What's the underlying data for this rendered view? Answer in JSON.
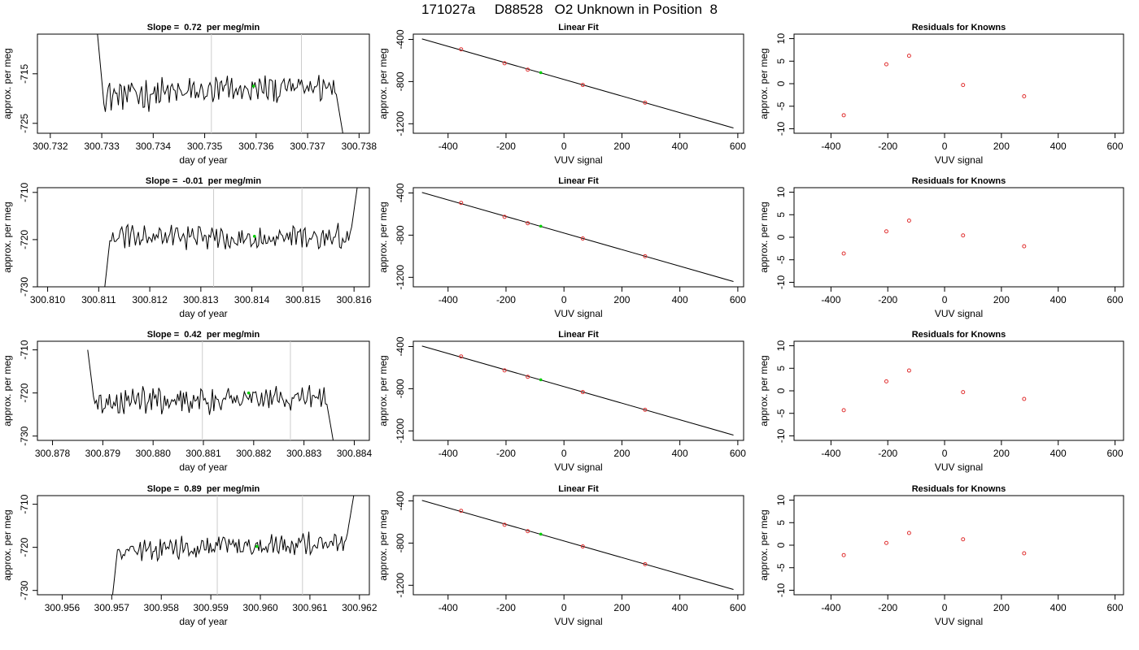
{
  "header": {
    "run_id": "171027a",
    "tank_id": "D88528",
    "description": "O2 Unknown in Position  8"
  },
  "colors": {
    "trace": "#000000",
    "known_points": "#e03030",
    "unknown_point": "#00cc00",
    "marker_lines": "#cccccc"
  },
  "chart_data": [
    {
      "type": "line",
      "row": 0,
      "panel": "timeseries",
      "title_prefix": "Slope = ",
      "title_value": "0.72",
      "title_suffix": " per meg/min",
      "xlabel": "day of year",
      "ylabel": "approx. per meg",
      "xlim": [
        300.73175,
        300.7382
      ],
      "ylim": [
        -727,
        -707
      ],
      "xticks": [
        "300.732",
        "300.733",
        "300.734",
        "300.735",
        "300.736",
        "300.737",
        "300.738"
      ],
      "yticks": [
        "-715",
        "-725"
      ],
      "x_start": 300.7329,
      "x_end": 300.7377,
      "y_start": -705,
      "y_end": -729,
      "baseline": -718.5,
      "amplitude": 2.6,
      "trend": 2.0,
      "vlines": [
        300.73513,
        300.73688
      ],
      "unknown_point": {
        "x": 300.73595,
        "y": -717.5
      }
    },
    {
      "type": "scatter",
      "row": 0,
      "panel": "fit",
      "title": "Linear Fit",
      "xlabel": "VUV signal",
      "ylabel": "approx. per meg",
      "xlim": [
        -520,
        620
      ],
      "ylim": [
        -1290,
        -350
      ],
      "xticks": [
        "-400",
        "-200",
        "0",
        "200",
        "400",
        "600"
      ],
      "yticks": [
        "-400",
        "-800",
        "-1200"
      ],
      "line": {
        "x": [
          -490,
          585
        ],
        "y": [
          -395,
          -1240
        ]
      },
      "knowns": [
        [
          -355,
          -494
        ],
        [
          -205,
          -626
        ],
        [
          -125,
          -687
        ],
        [
          65,
          -832
        ],
        [
          280,
          -1000
        ]
      ],
      "unknown": [
        -80,
        -715
      ]
    },
    {
      "type": "scatter",
      "row": 0,
      "panel": "residuals",
      "title": "Residuals for Knowns",
      "xlabel": "VUV signal",
      "ylabel": "approx. per meg",
      "xlim": [
        -530,
        630
      ],
      "ylim": [
        -11,
        11
      ],
      "xticks": [
        "-400",
        "-200",
        "0",
        "200",
        "400",
        "600"
      ],
      "yticks": [
        "10",
        "5",
        "0",
        "-5",
        "-10"
      ],
      "points": [
        [
          -355,
          -7.0
        ],
        [
          -205,
          4.3
        ],
        [
          -125,
          6.2
        ],
        [
          65,
          -0.3
        ],
        [
          280,
          -2.8
        ]
      ]
    },
    {
      "type": "line",
      "row": 1,
      "panel": "timeseries",
      "title_prefix": "Slope = ",
      "title_value": "-0.01",
      "title_suffix": " per meg/min",
      "xlabel": "day of year",
      "ylabel": "approx. per meg",
      "xlim": [
        300.8098,
        300.8163
      ],
      "ylim": [
        -730,
        -709
      ],
      "xticks": [
        "300.810",
        "300.811",
        "300.812",
        "300.813",
        "300.814",
        "300.815",
        "300.816"
      ],
      "yticks": [
        "-710",
        "-720",
        "-730"
      ],
      "x_start": 300.8111,
      "x_end": 300.8161,
      "y_start": -732,
      "y_end": -706,
      "baseline": -719.5,
      "amplitude": 2.2,
      "trend": 0.0,
      "vlines": [
        300.81325,
        300.81498
      ],
      "unknown_point": {
        "x": 300.81405,
        "y": -719.3
      }
    },
    {
      "type": "scatter",
      "row": 1,
      "panel": "fit",
      "title": "Linear Fit",
      "xlabel": "VUV signal",
      "ylabel": "approx. per meg",
      "xlim": [
        -520,
        620
      ],
      "ylim": [
        -1290,
        -350
      ],
      "xticks": [
        "-400",
        "-200",
        "0",
        "200",
        "400",
        "600"
      ],
      "yticks": [
        "-400",
        "-800",
        "-1200"
      ],
      "line": {
        "x": [
          -490,
          585
        ],
        "y": [
          -395,
          -1240
        ]
      },
      "knowns": [
        [
          -355,
          -494
        ],
        [
          -205,
          -626
        ],
        [
          -125,
          -687
        ],
        [
          65,
          -832
        ],
        [
          280,
          -1000
        ]
      ],
      "unknown": [
        -80,
        -715
      ]
    },
    {
      "type": "scatter",
      "row": 1,
      "panel": "residuals",
      "title": "Residuals for Knowns",
      "xlabel": "VUV signal",
      "ylabel": "approx. per meg",
      "xlim": [
        -530,
        630
      ],
      "ylim": [
        -11,
        11
      ],
      "xticks": [
        "-400",
        "-200",
        "0",
        "200",
        "400",
        "600"
      ],
      "yticks": [
        "10",
        "5",
        "0",
        "-5",
        "-10"
      ],
      "points": [
        [
          -355,
          -3.6
        ],
        [
          -205,
          1.3
        ],
        [
          -125,
          3.7
        ],
        [
          65,
          0.4
        ],
        [
          280,
          -2.0
        ]
      ]
    },
    {
      "type": "line",
      "row": 2,
      "panel": "timeseries",
      "title_prefix": "Slope = ",
      "title_value": "0.42",
      "title_suffix": " per meg/min",
      "xlabel": "day of year",
      "ylabel": "approx. per meg",
      "xlim": [
        300.8777,
        300.8843
      ],
      "ylim": [
        -731,
        -708
      ],
      "xticks": [
        "300.878",
        "300.879",
        "300.880",
        "300.881",
        "300.882",
        "300.883",
        "300.884"
      ],
      "yticks": [
        "-710",
        "-720",
        "-730"
      ],
      "x_start": 300.8787,
      "x_end": 300.8836,
      "y_start": -710,
      "y_end": -733,
      "baseline": -721.5,
      "amplitude": 2.6,
      "trend": 1.4,
      "vlines": [
        300.88098,
        300.88273
      ],
      "unknown_point": {
        "x": 300.8819,
        "y": -720
      }
    },
    {
      "type": "scatter",
      "row": 2,
      "panel": "fit",
      "title": "Linear Fit",
      "xlabel": "VUV signal",
      "ylabel": "approx. per meg",
      "xlim": [
        -520,
        620
      ],
      "ylim": [
        -1290,
        -350
      ],
      "xticks": [
        "-400",
        "-200",
        "0",
        "200",
        "400",
        "600"
      ],
      "yticks": [
        "-400",
        "-800",
        "-1200"
      ],
      "line": {
        "x": [
          -490,
          585
        ],
        "y": [
          -395,
          -1240
        ]
      },
      "knowns": [
        [
          -355,
          -494
        ],
        [
          -205,
          -626
        ],
        [
          -125,
          -687
        ],
        [
          65,
          -832
        ],
        [
          280,
          -1000
        ]
      ],
      "unknown": [
        -80,
        -715
      ]
    },
    {
      "type": "scatter",
      "row": 2,
      "panel": "residuals",
      "title": "Residuals for Knowns",
      "xlabel": "VUV signal",
      "ylabel": "approx. per meg",
      "xlim": [
        -530,
        630
      ],
      "ylim": [
        -11,
        11
      ],
      "xticks": [
        "-400",
        "-200",
        "0",
        "200",
        "400",
        "600"
      ],
      "yticks": [
        "10",
        "5",
        "0",
        "-5",
        "-10"
      ],
      "points": [
        [
          -355,
          -4.3
        ],
        [
          -205,
          2.1
        ],
        [
          -125,
          4.5
        ],
        [
          65,
          -0.3
        ],
        [
          280,
          -1.8
        ]
      ]
    },
    {
      "type": "line",
      "row": 3,
      "panel": "timeseries",
      "title_prefix": "Slope = ",
      "title_value": "0.89",
      "title_suffix": " per meg/min",
      "xlabel": "day of year",
      "ylabel": "approx. per meg",
      "xlim": [
        300.9555,
        300.9622
      ],
      "ylim": [
        -731,
        -708
      ],
      "xticks": [
        "300.956",
        "300.957",
        "300.958",
        "300.959",
        "300.960",
        "300.961",
        "300.962"
      ],
      "yticks": [
        "-710",
        "-720",
        "-730"
      ],
      "x_start": 300.957,
      "x_end": 300.9619,
      "y_start": -733,
      "y_end": -708,
      "baseline": -719.8,
      "amplitude": 2.1,
      "trend": 2.2,
      "vlines": [
        300.95913,
        300.96085
      ],
      "unknown_point": {
        "x": 300.95993,
        "y": -719.8
      }
    },
    {
      "type": "scatter",
      "row": 3,
      "panel": "fit",
      "title": "Linear Fit",
      "xlabel": "VUV signal",
      "ylabel": "approx. per meg",
      "xlim": [
        -520,
        620
      ],
      "ylim": [
        -1290,
        -350
      ],
      "xticks": [
        "-400",
        "-200",
        "0",
        "200",
        "400",
        "600"
      ],
      "yticks": [
        "-400",
        "-800",
        "-1200"
      ],
      "line": {
        "x": [
          -490,
          585
        ],
        "y": [
          -395,
          -1240
        ]
      },
      "knowns": [
        [
          -355,
          -494
        ],
        [
          -205,
          -626
        ],
        [
          -125,
          -687
        ],
        [
          65,
          -832
        ],
        [
          280,
          -1000
        ]
      ],
      "unknown": [
        -80,
        -715
      ]
    },
    {
      "type": "scatter",
      "row": 3,
      "panel": "residuals",
      "title": "Residuals for Knowns",
      "xlabel": "VUV signal",
      "ylabel": "approx. per meg",
      "xlim": [
        -530,
        630
      ],
      "ylim": [
        -11,
        11
      ],
      "xticks": [
        "-400",
        "-200",
        "0",
        "200",
        "400",
        "600"
      ],
      "yticks": [
        "10",
        "5",
        "0",
        "-5",
        "-10"
      ],
      "points": [
        [
          -355,
          -2.2
        ],
        [
          -205,
          0.5
        ],
        [
          -125,
          2.7
        ],
        [
          65,
          1.3
        ],
        [
          280,
          -1.8
        ]
      ]
    }
  ]
}
